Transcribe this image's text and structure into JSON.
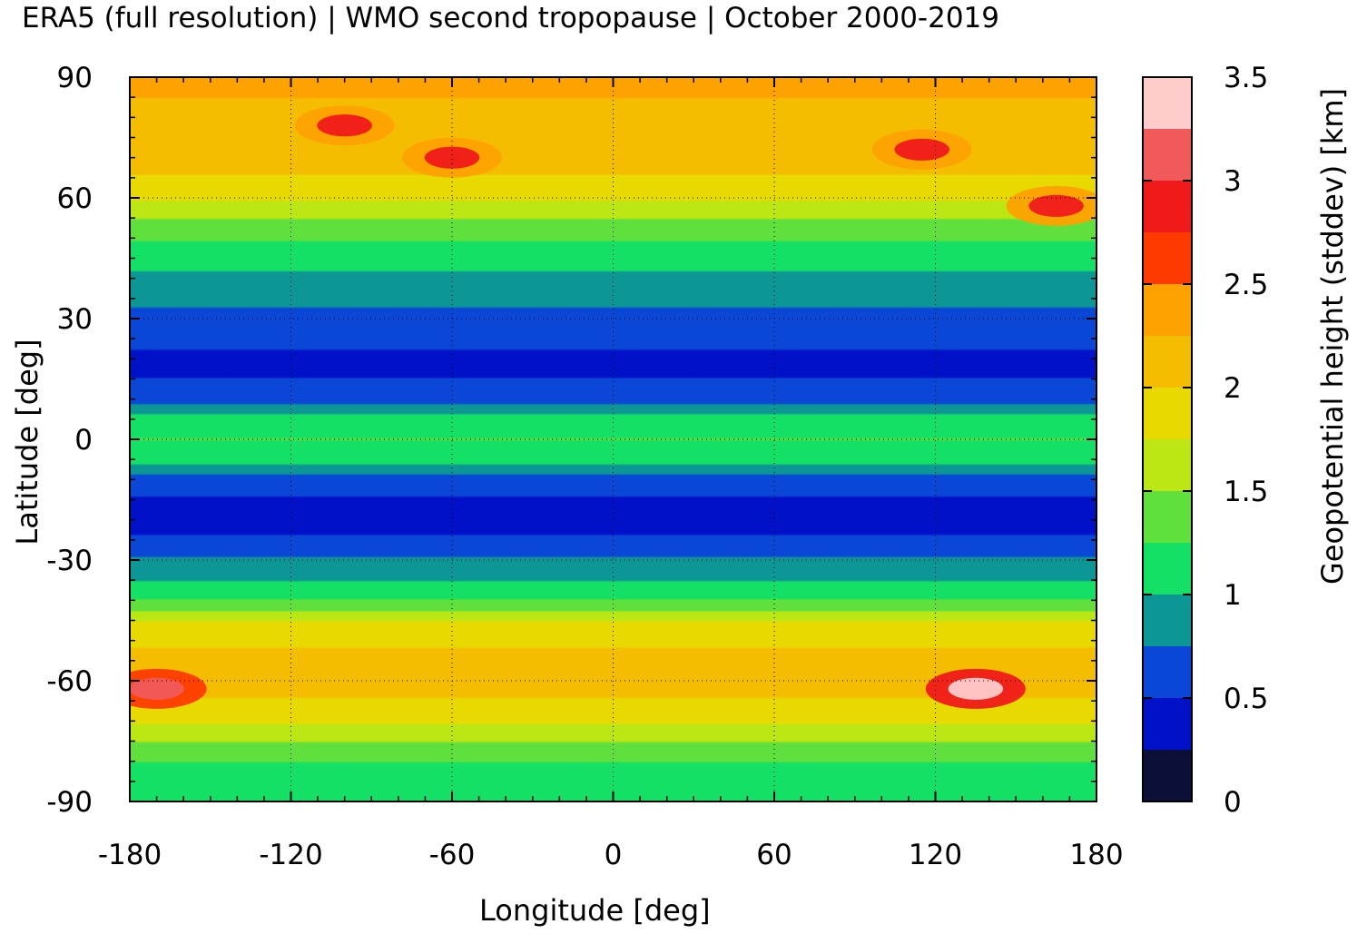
{
  "chart_data": {
    "type": "heatmap",
    "title": "ERA5 (full resolution) | WMO second tropopause | October 2000-2019",
    "xlabel": "Longitude [deg]",
    "ylabel": "Latitude [deg]",
    "colorbar_label": "Geopotential height (stddev) [km]",
    "xlim": [
      -180,
      180
    ],
    "ylim": [
      -90,
      90
    ],
    "x_ticks": [
      -180,
      -120,
      -60,
      0,
      60,
      120,
      180
    ],
    "y_ticks": [
      90,
      60,
      30,
      0,
      -30,
      -60,
      -90
    ],
    "colorbar_ticks": [
      "0",
      "0.5",
      "1",
      "1.5",
      "2",
      "2.5",
      "3",
      "3.5"
    ],
    "colorbar_range": [
      0,
      3.5
    ],
    "grid": true,
    "colorbar_levels": [
      {
        "from": 0.0,
        "to": 0.25,
        "color": "#0c0f38"
      },
      {
        "from": 0.25,
        "to": 0.5,
        "color": "#0011c8"
      },
      {
        "from": 0.5,
        "to": 0.75,
        "color": "#0a47d6"
      },
      {
        "from": 0.75,
        "to": 1.0,
        "color": "#0c9696"
      },
      {
        "from": 1.0,
        "to": 1.25,
        "color": "#14e066"
      },
      {
        "from": 1.25,
        "to": 1.5,
        "color": "#60e03c"
      },
      {
        "from": 1.5,
        "to": 1.75,
        "color": "#bce614"
      },
      {
        "from": 1.75,
        "to": 2.0,
        "color": "#e8da00"
      },
      {
        "from": 2.0,
        "to": 2.25,
        "color": "#f4bd00"
      },
      {
        "from": 2.25,
        "to": 2.5,
        "color": "#fda200"
      },
      {
        "from": 2.5,
        "to": 2.75,
        "color": "#ff3a00"
      },
      {
        "from": 2.75,
        "to": 3.0,
        "color": "#f01a1a"
      },
      {
        "from": 3.0,
        "to": 3.25,
        "color": "#f05a5a"
      },
      {
        "from": 3.25,
        "to": 3.5,
        "color": "#ffcccc"
      }
    ],
    "zonal_profile": [
      {
        "lat": 90,
        "value": 2.3
      },
      {
        "lat": 80,
        "value": 2.2
      },
      {
        "lat": 70,
        "value": 2.1
      },
      {
        "lat": 62,
        "value": 1.9
      },
      {
        "lat": 55,
        "value": 1.5
      },
      {
        "lat": 48,
        "value": 1.2
      },
      {
        "lat": 40,
        "value": 0.95
      },
      {
        "lat": 33,
        "value": 0.75
      },
      {
        "lat": 27,
        "value": 0.55
      },
      {
        "lat": 18,
        "value": 0.45
      },
      {
        "lat": 10,
        "value": 0.6
      },
      {
        "lat": 5,
        "value": 1.1
      },
      {
        "lat": 0,
        "value": 1.25
      },
      {
        "lat": -5,
        "value": 1.1
      },
      {
        "lat": -10,
        "value": 0.6
      },
      {
        "lat": -18,
        "value": 0.4
      },
      {
        "lat": -24,
        "value": 0.5
      },
      {
        "lat": -28,
        "value": 0.7
      },
      {
        "lat": -33,
        "value": 0.9
      },
      {
        "lat": -38,
        "value": 1.1
      },
      {
        "lat": -42,
        "value": 1.4
      },
      {
        "lat": -46,
        "value": 1.8
      },
      {
        "lat": -52,
        "value": 2.0
      },
      {
        "lat": -60,
        "value": 2.1
      },
      {
        "lat": -66,
        "value": 1.95
      },
      {
        "lat": -72,
        "value": 1.7
      },
      {
        "lat": -78,
        "value": 1.3
      },
      {
        "lat": -84,
        "value": 1.15
      },
      {
        "lat": -90,
        "value": 1.1
      }
    ],
    "hotspots": [
      {
        "lon": -100,
        "lat": 78,
        "value": 2.8
      },
      {
        "lon": -60,
        "lat": 70,
        "value": 2.8
      },
      {
        "lon": 115,
        "lat": 72,
        "value": 2.9
      },
      {
        "lon": 165,
        "lat": 58,
        "value": 2.8
      },
      {
        "lon": 135,
        "lat": -62,
        "value": 3.4
      },
      {
        "lon": -170,
        "lat": -62,
        "value": 3.2
      }
    ]
  }
}
